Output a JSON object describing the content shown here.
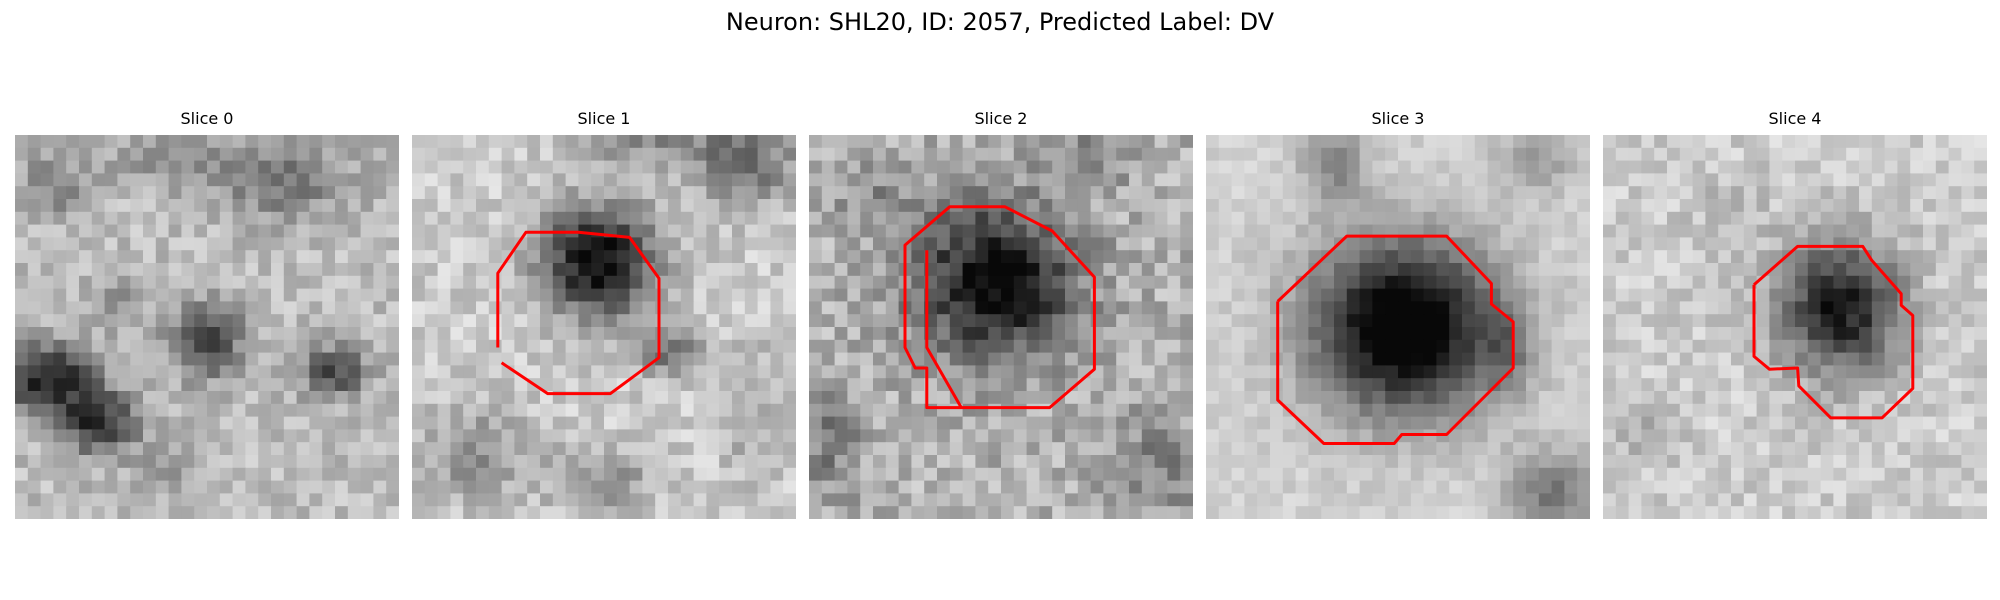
{
  "figure": {
    "title": "Neuron: SHL20, ID: 2057, Predicted Label: DV"
  },
  "slices": [
    {
      "label": "Slice 0",
      "has_contour": false
    },
    {
      "label": "Slice 1",
      "has_contour": true
    },
    {
      "label": "Slice 2",
      "has_contour": true
    },
    {
      "label": "Slice 3",
      "has_contour": true
    },
    {
      "label": "Slice 4",
      "has_contour": true
    }
  ],
  "colors": {
    "contour": "#ff0000",
    "background": "#ffffff",
    "colormap": "grayscale"
  }
}
